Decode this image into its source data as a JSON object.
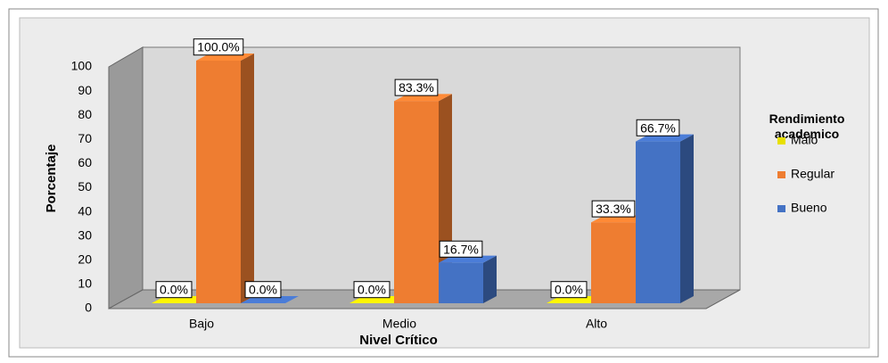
{
  "chart_data": {
    "type": "bar3d",
    "categories": [
      "Bajo",
      "Medio",
      "Alto"
    ],
    "series": [
      {
        "name": "Malo",
        "color": "#e8e000",
        "values": [
          0,
          0,
          0
        ],
        "value_labels": [
          "0.0%",
          "0.0%",
          "0.0%"
        ]
      },
      {
        "name": "Regular",
        "color": "#ee7d31",
        "values": [
          100,
          83.3,
          33.3
        ],
        "value_labels": [
          "100.0%",
          "83.3%",
          "33.3%"
        ]
      },
      {
        "name": "Bueno",
        "color": "#4472c4",
        "values": [
          0,
          16.7,
          66.7
        ],
        "value_labels": [
          "0.0%",
          "16.7%",
          "66.7%"
        ]
      }
    ],
    "ylim": [
      0,
      100
    ],
    "yticks": [
      0,
      10,
      20,
      30,
      40,
      50,
      60,
      70,
      80,
      90,
      100
    ],
    "y_label": "Porcentaje",
    "x_label": "Nivel Crítico",
    "legend_title": "Rendimiento academico",
    "legend": "right",
    "grid": false
  }
}
